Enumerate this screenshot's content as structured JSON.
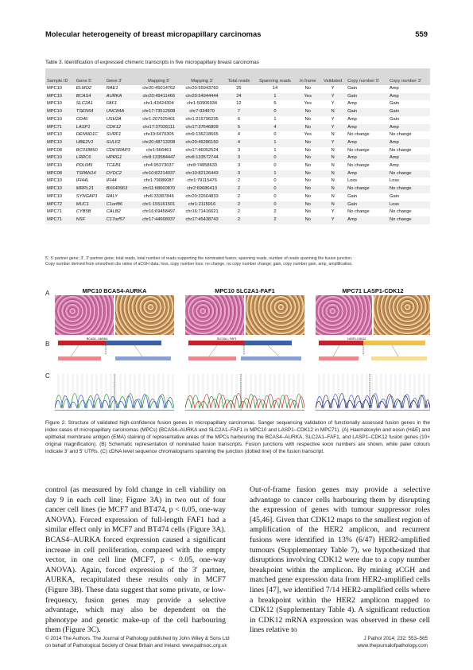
{
  "header": {
    "title": "Molecular heterogeneity of breast micropapillary carcinomas",
    "page_number": "559"
  },
  "table_caption": "Table 3.  Identification of expressed chimeric transcripts in five micropapillary breast carcinomas",
  "table": {
    "columns": [
      "Sample ID",
      "Gene 5′",
      "Gene 3′",
      "Mapping 5′",
      "Mapping 3′",
      "Total reads",
      "Spanning reads",
      "In frame",
      "Validated",
      "Copy number 5′",
      "Copy number 3′"
    ],
    "rows": [
      [
        "MPC10",
        "ELMO2",
        "RAE1",
        "chr20:45014762",
        "chr20:55943760",
        "25",
        "14",
        "No",
        "Y",
        "Gain",
        "Amp"
      ],
      [
        "MPC10",
        "BCAS4",
        "AURKA",
        "chr20:49411466",
        "chr20:54944444",
        "24",
        "1",
        "Yes",
        "Y",
        "Gain",
        "Amp"
      ],
      [
        "MPC10",
        "SLC2A1",
        "FAF1",
        "chr1:43424304",
        "chr1:50906934",
        "12",
        "5",
        "Yes",
        "Y",
        "Amp",
        "Gain"
      ],
      [
        "MPC10",
        "TSEN54",
        "UNC84A",
        "chr17:73512608",
        "chr7:934970",
        "7",
        "0",
        "No",
        "N",
        "Gain",
        "Gain"
      ],
      [
        "MPC10",
        "CD46",
        "USH2A",
        "chr1:207925401",
        "chr1:215796235",
        "6",
        "1",
        "No",
        "Y",
        "Amp",
        "Gain"
      ],
      [
        "MPC71",
        "LASP1",
        "CDK12",
        "chr17:37026111",
        "chr17:37646809",
        "5",
        "4",
        "No",
        "Y",
        "Amp",
        "Amp"
      ],
      [
        "MPC10",
        "DENND1C",
        "SURF1",
        "chr19:6470305",
        "chr9:136218665",
        "4",
        "0",
        "Yes",
        "N",
        "No change",
        "No change"
      ],
      [
        "MPC10",
        "UBE2V1",
        "SULF2",
        "chr20:48713208",
        "chr20:46286150",
        "4",
        "1",
        "No",
        "Y",
        "Amp",
        "Amp"
      ],
      [
        "MPC08",
        "BC018860",
        "CDK5RAP3",
        "chr1:566461",
        "chr17:46052524",
        "3",
        "1",
        "No",
        "N",
        "No change",
        "No change"
      ],
      [
        "MPC10",
        "LRRC6",
        "HPRG1",
        "chr8:133584447",
        "chr8:133572744",
        "3",
        "0",
        "No",
        "N",
        "Amp",
        "Amp"
      ],
      [
        "MPC10",
        "PDLIM5",
        "TCEB1",
        "chr4:95373037",
        "chr8:74858633",
        "3",
        "0",
        "No",
        "N",
        "No change",
        "Amp"
      ],
      [
        "MPC08",
        "TSPAN14",
        "DYDC2",
        "chr10:82214037",
        "chr10:82126443",
        "3",
        "1",
        "No",
        "N",
        "Amp",
        "No change"
      ],
      [
        "MPC10",
        "IFI44L",
        "IFI44",
        "chr1:79086087",
        "chr1:79115476",
        "2",
        "0",
        "No",
        "N",
        "Loss",
        "Loss"
      ],
      [
        "MPC10",
        "MRPL21",
        "BX640963",
        "chr11:68660870",
        "chr2:69686413",
        "2",
        "0",
        "No",
        "N",
        "No change",
        "No change"
      ],
      [
        "MPC10",
        "SYNGAP1",
        "RALY",
        "chr6:33387846",
        "chr20:32664833",
        "2",
        "0",
        "No",
        "N",
        "Gain",
        "Gain"
      ],
      [
        "MPC72",
        "MUC1",
        "C1orf86",
        "chr1:155161501",
        "chr1:2115916",
        "2",
        "0",
        "No",
        "N",
        "Gain",
        "Loss"
      ],
      [
        "MPC71",
        "CYB5B",
        "CALB2",
        "chr16:69458497",
        "chr16:71416621",
        "2",
        "2",
        "No",
        "Y",
        "No change",
        "No change"
      ],
      [
        "MPC71",
        "NSF",
        "C17orf57",
        "chr17:44668037",
        "chr17:45438743",
        "2",
        "2",
        "No",
        "Y",
        "Amp",
        "No change"
      ]
    ]
  },
  "table_footnotes": [
    "5′, 5′ partner gene; 3′, 3′ partner gene; total reads, total number of reads supporting the nominated fusion; spanning reads, number of reads spanning the fusion junction.",
    "Copy number derived from smoothed cbs ratios of aCGH data; loss, copy number loss; no change, no copy number change; gain, copy number gain, amp, amplification."
  ],
  "figure": {
    "panel_letters": [
      "A",
      "B",
      "C"
    ],
    "panel_titles": [
      "MPC10 BCAS4-AURKA",
      "MPC10 SLC2A1-FAF1",
      "MPC71 LASP1-CDK12"
    ],
    "schematic_labels": [
      "BCAS4 - AURKA",
      "SLC2A1 - FAF1",
      "LASP1-CDK12"
    ],
    "caption": "Figure 2. Structure of validated high-confidence fusion genes in micropapillary carcinomas. Sanger sequencing validation of functionally assessed fusion genes in the index cases of micropapillary carcinomas (MPCs) (BCAS4–AURKA and SLC2A1–FAF1 in MPC10 and LASP1–CDK12 in MPC71). (A) Haematoxylin and eosin (H&E) and epithelial membrane antigen (EMA) staining of representative areas of the MPCs harbouring the BCAS4–AURKA, SLC2A1–FAF1, and LASP1–CDK12 fusion genes (10× original magnification). (B) Schematic representation of nominated fusion transcripts. Fusion junctions with respective exon numbers are shown, while paler colours indicate 3′ and 5′ UTRs. (C) cDNA level sequence chromatograms spanning the junction (dotted line) of the fusion transcript."
  },
  "body": {
    "col1": "control (as measured by fold change in cell viability on day 9 in each cell line; Figure 3A) in two out of four cancer cell lines (ie MCF7 and BT474, p < 0.05, one-way ANOVA). Forced expression of full-length FAF1 had a similar effect only in MCF7 and BT474 cells (Figure 3A). BCAS4–AURKA forced expression caused a significant increase in cell proliferation, compared with the empty vector, in one cell line (MCF7, p < 0.05, one-way ANOVA). Again, forced expression of the 3′ partner, AURKA, recapitulated these results only in MCF7 (Figure 3B). These data suggest that some private, or low-frequency, fusion genes may provide a selective advantage, which may also be dependent on the phenotype and genetic make-up of the cell harbouring them (Figure 3C).",
    "col2": "Out-of-frame fusion genes may provide a selective advantage to cancer cells harbouring them by disrupting the expression of genes with tumour suppressor roles [45,46]. Given that CDK12 maps to the smallest region of amplification of the HER2 amplicon, and recurrent fusions were identified in 13% (6/47) HER2-amplified tumours (Supplementary Table 7), we hypothesized that disruptions involving CDK12 were due to a copy number breakpoint within the amplicon. By mining aCGH and matched gene expression data from HER2-amplified cells lines [47], we identified 7/14 HER2-amplified cells where a breakpoint within the HER2 amplicon mapped to CDK12 (Supplementary Table 4). A significant reduction in CDK12 mRNA expression was observed in these cell lines relative to"
  },
  "footer": {
    "left_line1": "© 2014 The Authors. The Journal of Pathology published by John Wiley & Sons Ltd",
    "left_line2": "on behalf of Pathological Society of Great Britain and Ireland. www.pathsoc.org.uk",
    "right_line1": "J Pathol 2014; 232: 553–565",
    "right_line2": "www.thejournalofpathology.com"
  }
}
